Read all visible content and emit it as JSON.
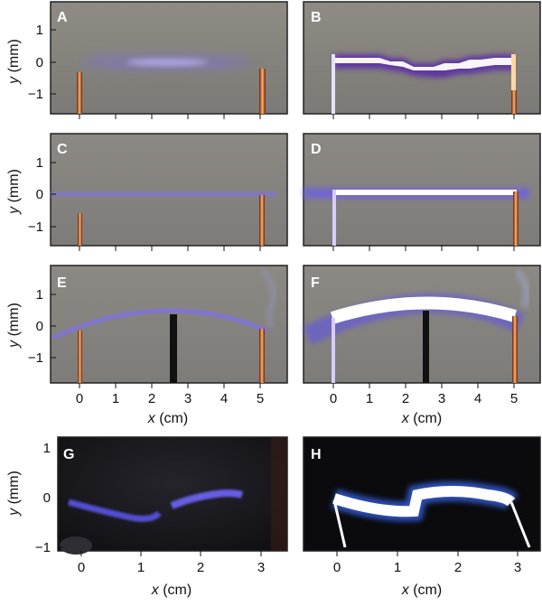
{
  "panels": {
    "A": {
      "label": "A"
    },
    "B": {
      "label": "B"
    },
    "C": {
      "label": "C"
    },
    "D": {
      "label": "D"
    },
    "E": {
      "label": "E"
    },
    "F": {
      "label": "F"
    },
    "G": {
      "label": "G"
    },
    "H": {
      "label": "H"
    }
  },
  "axes_top": {
    "ylabel_var": "y",
    "ylabel_unit": " (mm)",
    "yticks": [
      "1",
      "0",
      "−1"
    ],
    "xlabel_var": "x",
    "xlabel_unit": " (cm)",
    "xticks": [
      "0",
      "1",
      "2",
      "3",
      "4",
      "5"
    ]
  },
  "axes_bottom": {
    "ylabel_var": "y",
    "ylabel_unit": " (mm)",
    "yticks": [
      "1",
      "0",
      "−1"
    ],
    "xlabel_var": "x",
    "xlabel_unit": " (cm)",
    "xticks": [
      "0",
      "1",
      "2",
      "3"
    ]
  },
  "colors": {
    "panel_bg_gray": "#8a8680",
    "panel_bg_dark": "#15151a",
    "plasma_violet": "#6d5cff",
    "plasma_white": "#ffffff",
    "electrode_orange": "#ff8a3a"
  }
}
